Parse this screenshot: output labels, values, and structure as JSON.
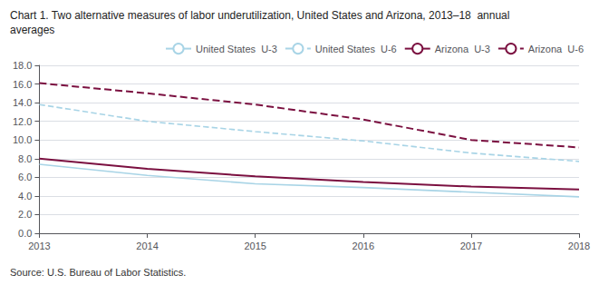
{
  "chart_data": {
    "type": "line",
    "title": "Chart 1. Two alternative measures of labor underutilization, United States and Arizona, 2013–18  annual\naverages",
    "annotations": [
      "Source: U.S. Bureau of Labor Statistics."
    ],
    "x": [
      2013,
      2014,
      2015,
      2016,
      2017,
      2018
    ],
    "xlim": [
      2013,
      2018
    ],
    "xticks": [
      2013,
      2014,
      2015,
      2016,
      2017,
      2018
    ],
    "ylim": [
      0.0,
      18.0
    ],
    "yticks": [
      {
        "value": 0.0,
        "label": "0.0"
      },
      {
        "value": 2.0,
        "label": "2.0"
      },
      {
        "value": 4.0,
        "label": "4.0"
      },
      {
        "value": 6.0,
        "label": "6.0"
      },
      {
        "value": 8.0,
        "label": "8.0"
      },
      {
        "value": 10.0,
        "label": "10.0"
      },
      {
        "value": 12.0,
        "label": "12.0"
      },
      {
        "value": 14.0,
        "label": "14.0"
      },
      {
        "value": 16.0,
        "label": "16.0"
      },
      {
        "value": 18.0,
        "label": "18.0"
      }
    ],
    "series": [
      {
        "name": "United States  U-3",
        "color": "#a8d4e6",
        "line_style": "solid",
        "values": [
          7.4,
          6.2,
          5.3,
          4.9,
          4.4,
          3.9
        ]
      },
      {
        "name": "United States  U-6",
        "color": "#a8d4e6",
        "line_style": "dashed",
        "values": [
          13.8,
          12.0,
          10.9,
          9.9,
          8.6,
          7.7
        ]
      },
      {
        "name": "Arizona  U-3",
        "color": "#7b1040",
        "line_style": "solid",
        "values": [
          8.0,
          6.9,
          6.1,
          5.5,
          5.0,
          4.7
        ]
      },
      {
        "name": "Arizona  U-6",
        "color": "#7b1040",
        "line_style": "dashed",
        "values": [
          16.1,
          15.0,
          13.8,
          12.2,
          10.0,
          9.2
        ]
      }
    ],
    "grid": true,
    "legend": "upper right"
  }
}
